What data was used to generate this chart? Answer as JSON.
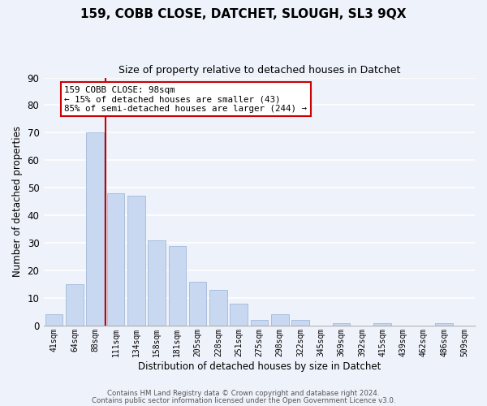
{
  "title1": "159, COBB CLOSE, DATCHET, SLOUGH, SL3 9QX",
  "title2": "Size of property relative to detached houses in Datchet",
  "xlabel": "Distribution of detached houses by size in Datchet",
  "ylabel": "Number of detached properties",
  "bar_labels": [
    "41sqm",
    "64sqm",
    "88sqm",
    "111sqm",
    "134sqm",
    "158sqm",
    "181sqm",
    "205sqm",
    "228sqm",
    "251sqm",
    "275sqm",
    "298sqm",
    "322sqm",
    "345sqm",
    "369sqm",
    "392sqm",
    "415sqm",
    "439sqm",
    "462sqm",
    "486sqm",
    "509sqm"
  ],
  "bar_values": [
    4,
    15,
    70,
    48,
    47,
    31,
    29,
    16,
    13,
    8,
    2,
    4,
    2,
    0,
    1,
    0,
    1,
    0,
    0,
    1,
    0
  ],
  "bar_color": "#c8d8f0",
  "bar_edgecolor": "#aabedd",
  "vline_color": "#cc0000",
  "vline_x": 2.5,
  "annotation_text": "159 COBB CLOSE: 98sqm\n← 15% of detached houses are smaller (43)\n85% of semi-detached houses are larger (244) →",
  "annotation_box_facecolor": "#ffffff",
  "annotation_box_edgecolor": "#cc0000",
  "ylim": [
    0,
    90
  ],
  "yticks": [
    0,
    10,
    20,
    30,
    40,
    50,
    60,
    70,
    80,
    90
  ],
  "background_color": "#eef2fa",
  "grid_color": "#ffffff",
  "footer1": "Contains HM Land Registry data © Crown copyright and database right 2024.",
  "footer2": "Contains public sector information licensed under the Open Government Licence v3.0."
}
